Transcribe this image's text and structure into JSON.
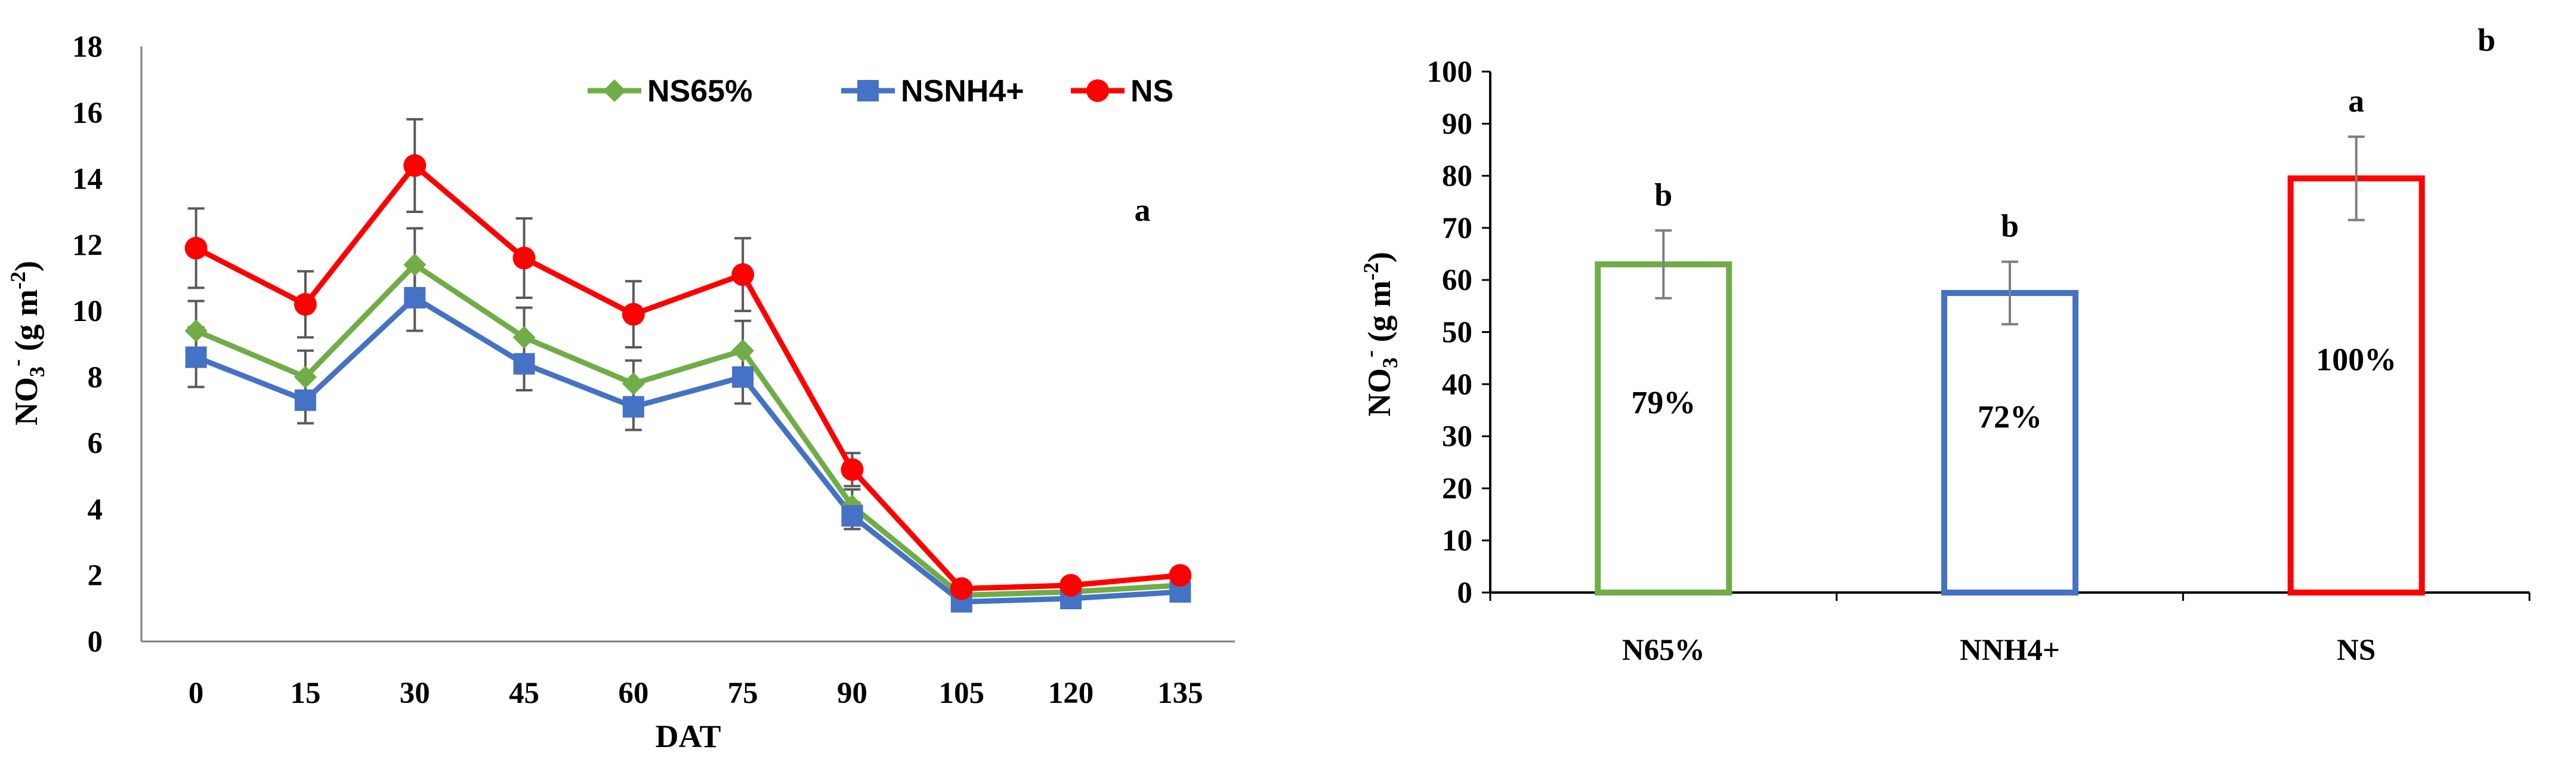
{
  "chart_data": [
    {
      "type": "line",
      "panel_label": "a",
      "xlabel": "DAT",
      "ylabel_parts": [
        "NO",
        "3",
        "-",
        " (g m",
        "-2",
        ")"
      ],
      "x": [
        0,
        15,
        30,
        45,
        60,
        75,
        90,
        105,
        120,
        135
      ],
      "ylim": [
        0,
        18
      ],
      "yticks": [
        0,
        2,
        4,
        6,
        8,
        10,
        12,
        14,
        16,
        18
      ],
      "grid": false,
      "legend_position": "top-right",
      "series": [
        {
          "name": "NS65%",
          "color": "#70ad47",
          "marker": "diamond",
          "values": [
            9.4,
            8.0,
            11.4,
            9.2,
            7.8,
            8.8,
            4.1,
            1.4,
            1.5,
            1.7
          ],
          "errors": [
            0.9,
            0.8,
            1.1,
            0.9,
            0.7,
            0.9,
            0.5,
            0.2,
            0.2,
            0.2
          ]
        },
        {
          "name": "NSNH4+",
          "color": "#4472c4",
          "marker": "square",
          "values": [
            8.6,
            7.3,
            10.4,
            8.4,
            7.1,
            8.0,
            3.8,
            1.2,
            1.3,
            1.5
          ],
          "errors": [
            0.9,
            0.7,
            1.0,
            0.8,
            0.7,
            0.8,
            0.4,
            0.2,
            0.2,
            0.2
          ]
        },
        {
          "name": "NS",
          "color": "#ff0000",
          "marker": "circle",
          "values": [
            11.9,
            10.2,
            14.4,
            11.6,
            9.9,
            11.1,
            5.2,
            1.6,
            1.7,
            2.0
          ],
          "errors": [
            1.2,
            1.0,
            1.4,
            1.2,
            1.0,
            1.1,
            0.5,
            0.2,
            0.2,
            0.2
          ]
        }
      ]
    },
    {
      "type": "bar",
      "panel_label": "b",
      "ylabel_parts": [
        "NO",
        "3",
        "-",
        " (g m",
        "-2",
        ")"
      ],
      "categories": [
        "N65%",
        "NNH4+",
        "NS"
      ],
      "values": [
        63,
        57.5,
        79.5
      ],
      "errors": [
        6.5,
        6,
        8
      ],
      "colors": [
        "#70ad47",
        "#4472c4",
        "#ff0000"
      ],
      "bar_labels": [
        "79%",
        "72%",
        "100%"
      ],
      "significance": [
        "b",
        "b",
        "a"
      ],
      "ylim": [
        0,
        100
      ],
      "yticks": [
        0,
        10,
        20,
        30,
        40,
        50,
        60,
        70,
        80,
        90,
        100
      ],
      "grid": false
    }
  ]
}
